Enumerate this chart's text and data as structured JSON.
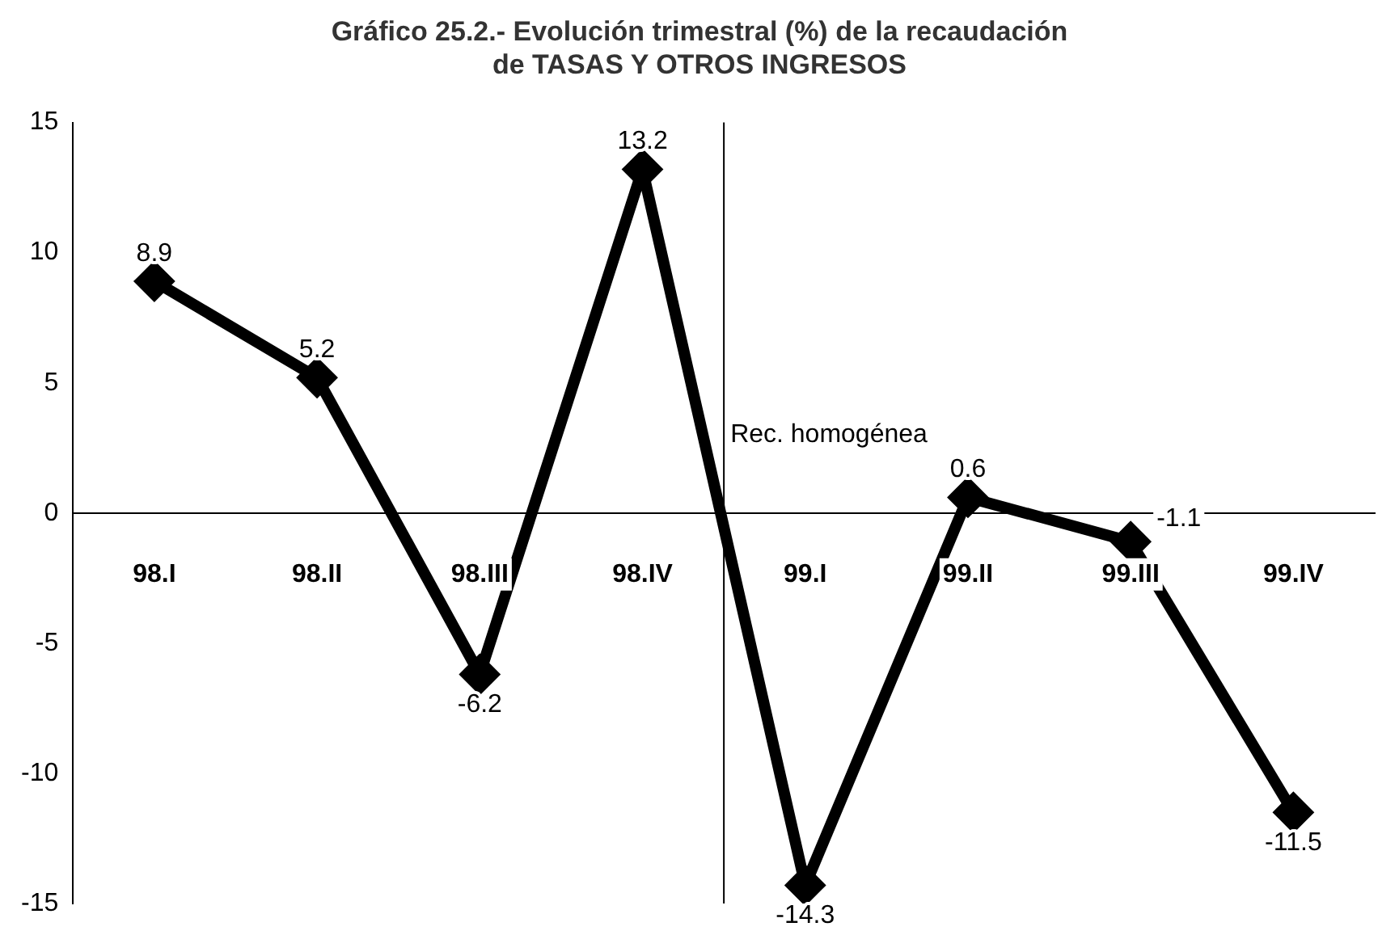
{
  "chart_data": {
    "type": "line",
    "title": [
      "Gráfico 25.2.- Evolución trimestral (%) de la recaudación",
      "de TASAS Y OTROS INGRESOS"
    ],
    "categories": [
      "98.I",
      "98.II",
      "98.III",
      "98.IV",
      "99.I",
      "99.II",
      "99.III",
      "99.IV"
    ],
    "series": [
      {
        "color": "#000000",
        "values": [
          8.9,
          5.2,
          -6.2,
          13.2,
          -14.3,
          0.6,
          -1.1,
          -11.5
        ]
      }
    ],
    "ylim": [
      -15,
      15
    ],
    "yticks": [
      -15,
      -10,
      -5,
      0,
      5,
      10,
      15
    ],
    "grid": false,
    "legend": false,
    "marker": "diamond",
    "line_style": "solid",
    "data_labels": true,
    "annotations": [
      "Rec. homogénea"
    ]
  }
}
